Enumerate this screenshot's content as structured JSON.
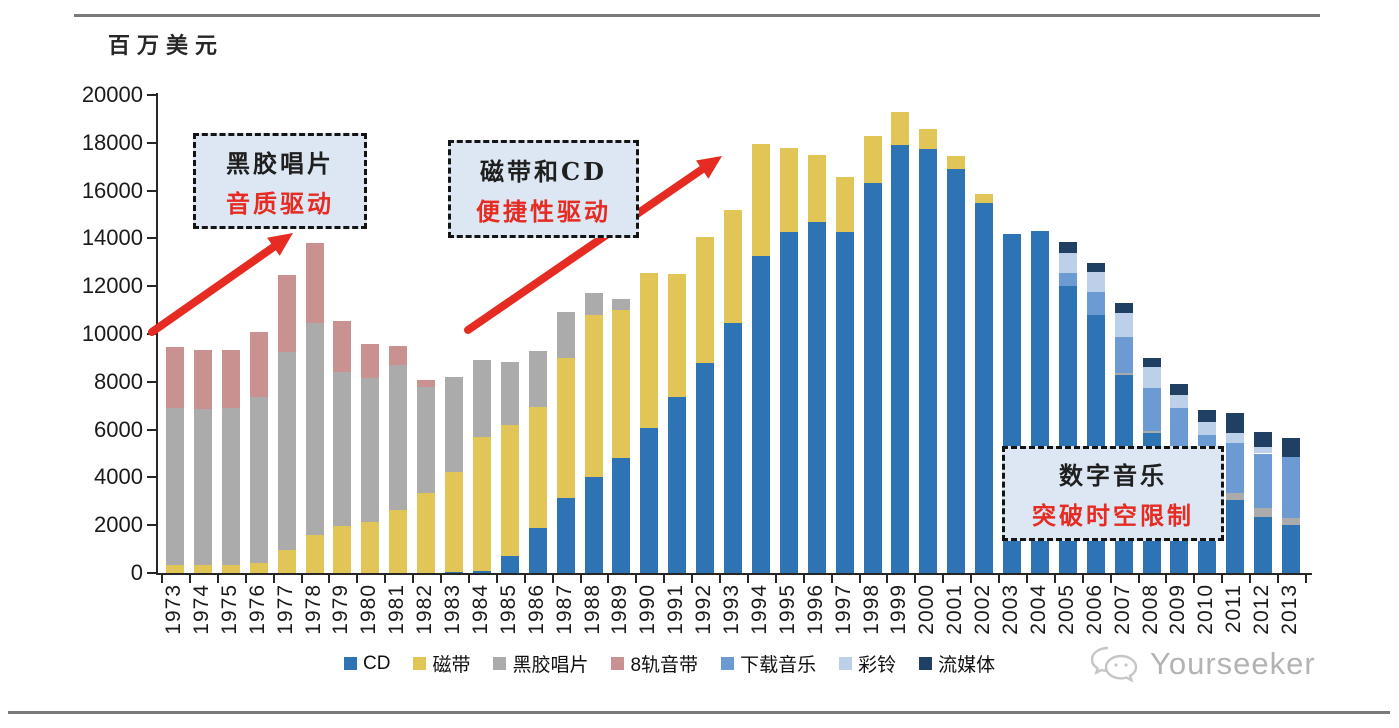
{
  "page": {
    "unit_label": "百万美元",
    "watermark": "Yourseeker"
  },
  "colors": {
    "accent_red": "#e52b22",
    "annotation_bg": "#dce7f3",
    "axis": "#262626"
  },
  "annotations": [
    {
      "line1": "黑胶唱片",
      "line2": "音质驱动"
    },
    {
      "line1": "磁带和CD",
      "line2": "便捷性驱动"
    },
    {
      "line1": "数字音乐",
      "line2": "突破时空限制"
    }
  ],
  "chart_data": {
    "type": "bar",
    "stacked": true,
    "title": "",
    "ylabel": "百万美元",
    "xlabel": "",
    "ylim": [
      0,
      20000
    ],
    "ytick_step": 2000,
    "grid": false,
    "legend_position": "bottom",
    "categories": [
      "1973",
      "1974",
      "1975",
      "1976",
      "1977",
      "1978",
      "1979",
      "1980",
      "1981",
      "1982",
      "1983",
      "1984",
      "1985",
      "1986",
      "1987",
      "1988",
      "1989",
      "1990",
      "1991",
      "1992",
      "1993",
      "1994",
      "1995",
      "1996",
      "1997",
      "1998",
      "1999",
      "2000",
      "2001",
      "2002",
      "2003",
      "2004",
      "2005",
      "2006",
      "2007",
      "2008",
      "2009",
      "2010",
      "2011",
      "2012",
      "2013"
    ],
    "series": [
      {
        "name": "CD",
        "color": "#2e74b5",
        "values": [
          0,
          0,
          0,
          0,
          0,
          0,
          0,
          0,
          0,
          0,
          30,
          100,
          700,
          1870,
          3120,
          4000,
          4800,
          6080,
          7380,
          8770,
          10470,
          13260,
          14280,
          14700,
          14280,
          16300,
          17900,
          17750,
          16900,
          15490,
          14200,
          14300,
          12000,
          10790,
          8280,
          5860,
          5000,
          4100,
          3050,
          2360,
          2010
        ]
      },
      {
        "name": "磁带",
        "color": "#e2c557",
        "values": [
          350,
          350,
          350,
          400,
          950,
          1600,
          1950,
          2150,
          2650,
          3350,
          4200,
          5580,
          5500,
          5090,
          5860,
          6790,
          6200,
          6480,
          5130,
          5300,
          4720,
          4690,
          3520,
          2800,
          2300,
          2000,
          1400,
          850,
          550,
          390,
          0,
          0,
          0,
          0,
          0,
          0,
          0,
          0,
          0,
          0,
          0
        ]
      },
      {
        "name": "黑胶唱片",
        "color": "#ababab",
        "values": [
          6550,
          6500,
          6550,
          6950,
          8300,
          8850,
          6450,
          6000,
          6050,
          4450,
          3970,
          3230,
          2650,
          2340,
          1950,
          910,
          450,
          0,
          0,
          0,
          0,
          0,
          0,
          0,
          0,
          0,
          0,
          0,
          0,
          0,
          0,
          0,
          0,
          0,
          80,
          100,
          150,
          150,
          300,
          350,
          280
        ]
      },
      {
        "name": "8轨音带",
        "color": "#c9918f",
        "values": [
          2550,
          2500,
          2450,
          2750,
          3200,
          3350,
          2150,
          1450,
          800,
          280,
          0,
          0,
          0,
          0,
          0,
          0,
          0,
          0,
          0,
          0,
          0,
          0,
          0,
          0,
          0,
          0,
          0,
          0,
          0,
          0,
          0,
          0,
          0,
          0,
          0,
          0,
          0,
          0,
          0,
          0,
          0
        ]
      },
      {
        "name": "下载音乐",
        "color": "#6b9bd2",
        "values": [
          0,
          0,
          0,
          0,
          0,
          0,
          0,
          0,
          0,
          0,
          0,
          0,
          0,
          0,
          0,
          0,
          0,
          0,
          0,
          0,
          0,
          0,
          0,
          0,
          0,
          0,
          0,
          0,
          0,
          0,
          0,
          0,
          540,
          980,
          1530,
          1770,
          1740,
          1520,
          2090,
          2290,
          2580
        ]
      },
      {
        "name": "彩铃",
        "color": "#bdd0e9",
        "values": [
          0,
          0,
          0,
          0,
          0,
          0,
          0,
          0,
          0,
          0,
          0,
          0,
          0,
          0,
          0,
          0,
          0,
          0,
          0,
          0,
          0,
          0,
          0,
          0,
          0,
          0,
          0,
          0,
          0,
          0,
          0,
          0,
          840,
          840,
          970,
          900,
          560,
          560,
          420,
          280,
          0
        ]
      },
      {
        "name": "流媒体",
        "color": "#1f3f63",
        "values": [
          0,
          0,
          0,
          0,
          0,
          0,
          0,
          0,
          0,
          0,
          0,
          0,
          0,
          0,
          0,
          0,
          0,
          0,
          0,
          0,
          0,
          0,
          0,
          0,
          0,
          0,
          0,
          0,
          0,
          0,
          0,
          0,
          480,
          380,
          420,
          350,
          480,
          490,
          840,
          630,
          770
        ]
      }
    ]
  }
}
